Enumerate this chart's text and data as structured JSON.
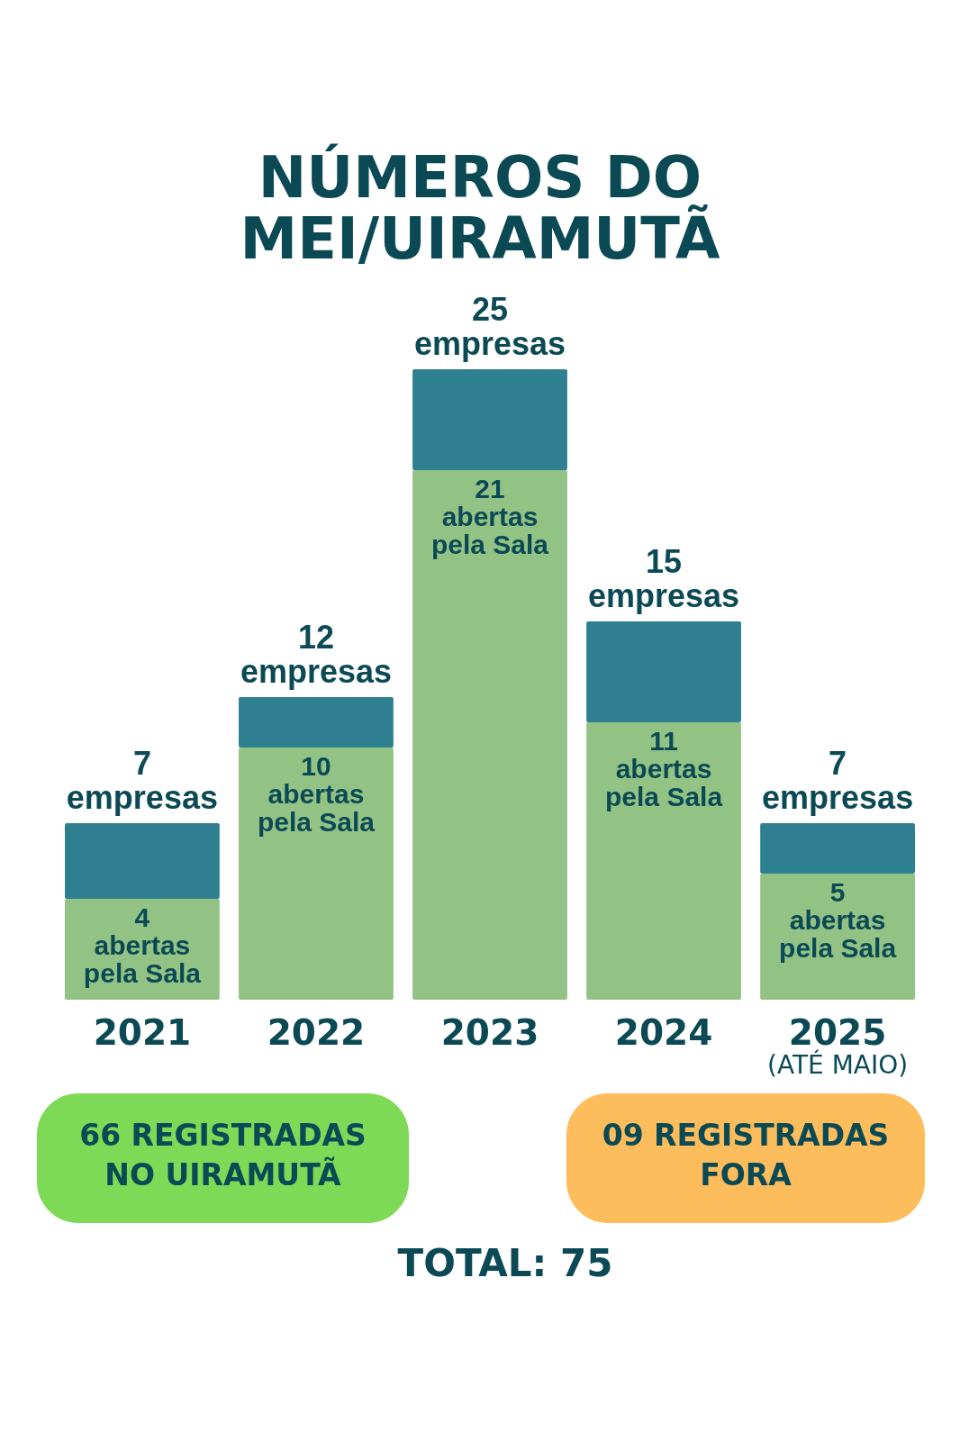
{
  "chart_data": {
    "type": "bar",
    "title": "NÚMEROS DO MEI/UIRAMUTÃ",
    "stacked": true,
    "tick_labels": "x",
    "categories": [
      "2021",
      "2022",
      "2023",
      "2024",
      "2025"
    ],
    "series": [
      {
        "color": "#93c285",
        "values": [
          4,
          10,
          21,
          11,
          5
        ],
        "value_labels": [
          "4 abertas pela Sala",
          "10 abertas pela Sala",
          "21 abertas pela Sala",
          "11 abertas pela Sala",
          "5 abertas pela Sala"
        ]
      },
      {
        "color": "#2e7f8f",
        "values": [
          3,
          2,
          4,
          4,
          2
        ]
      }
    ],
    "totals": [
      "7 empresas",
      "12 empresas",
      "25 empresas",
      "15 empresas",
      "7 empresas"
    ],
    "annotations": [
      "(ATÉ MAIO)",
      "66 REGISTRADAS NO UIRAMUTÃ",
      "09 REGISTRADAS FORA",
      "TOTAL: 75"
    ]
  }
}
